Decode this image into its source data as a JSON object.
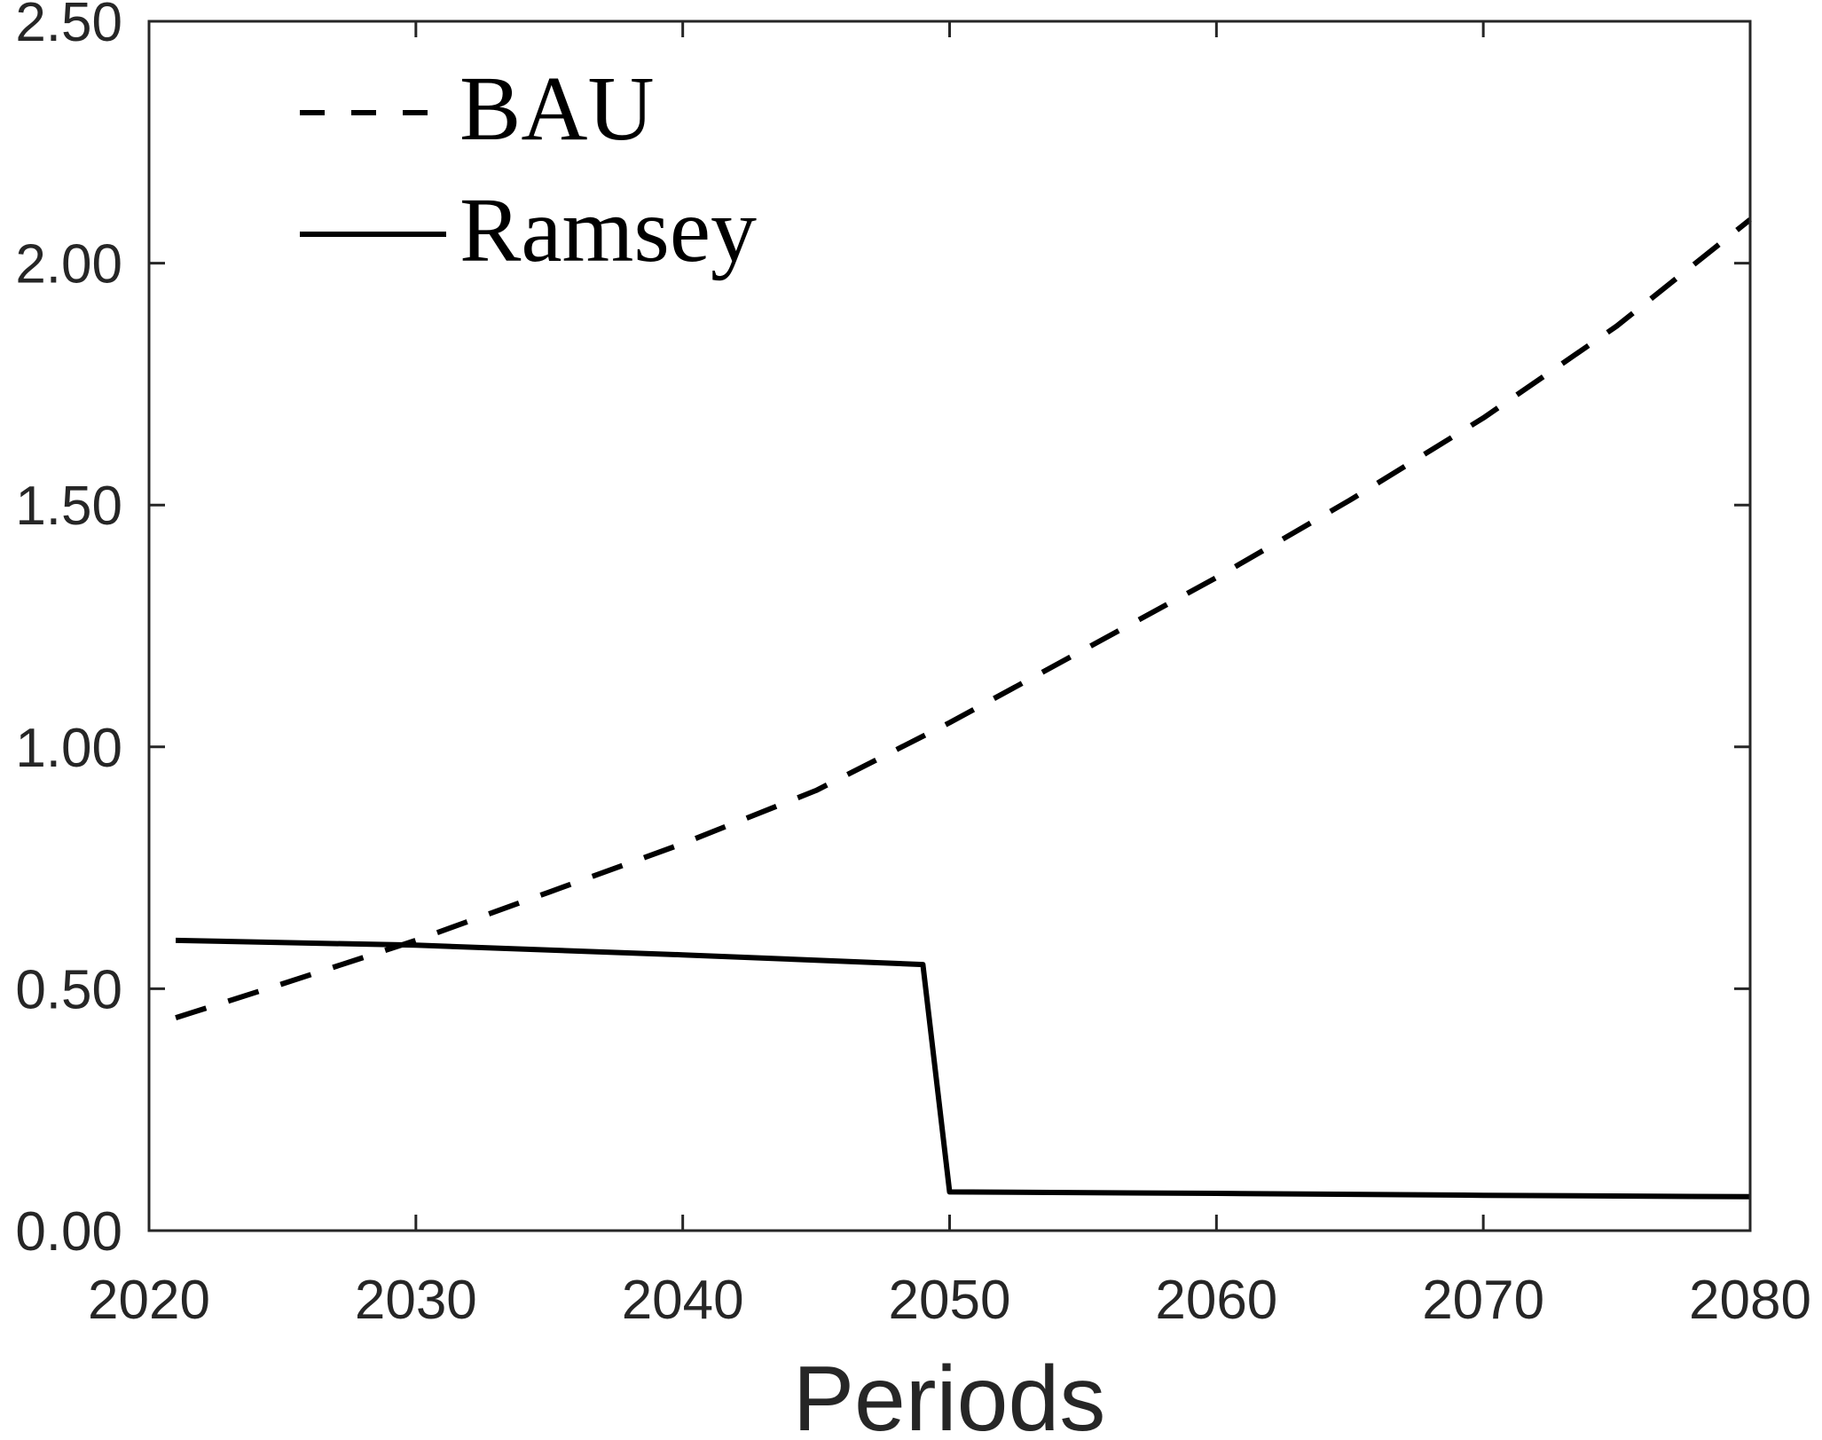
{
  "chart_data": {
    "type": "line",
    "title": "",
    "xlabel": "Periods",
    "ylabel": "",
    "xlim": [
      2020,
      2080
    ],
    "ylim": [
      0,
      2.5
    ],
    "xticks": [
      2020,
      2030,
      2040,
      2050,
      2060,
      2070,
      2080
    ],
    "xtick_labels": [
      "2020",
      "2030",
      "2040",
      "2050",
      "2060",
      "2070",
      "2080"
    ],
    "yticks": [
      0,
      0.5,
      1,
      1.5,
      2,
      2.5
    ],
    "ytick_labels": [
      "0.00",
      "0.50",
      "1.00",
      "1.50",
      "2.00",
      "2.50"
    ],
    "grid": false,
    "legend_position": "top-left",
    "series": [
      {
        "name": "BAU",
        "style": "dashed",
        "color": "#000000",
        "x": [
          2021,
          2025,
          2030,
          2035,
          2040,
          2045,
          2050,
          2055,
          2060,
          2065,
          2070,
          2075,
          2080
        ],
        "y": [
          0.44,
          0.51,
          0.6,
          0.7,
          0.8,
          0.91,
          1.05,
          1.2,
          1.35,
          1.51,
          1.68,
          1.87,
          2.09
        ]
      },
      {
        "name": "Ramsey",
        "style": "solid",
        "color": "#000000",
        "x": [
          2021,
          2030,
          2040,
          2049,
          2050,
          2060,
          2070,
          2080
        ],
        "y": [
          0.6,
          0.59,
          0.57,
          0.55,
          0.08,
          0.077,
          0.073,
          0.07
        ]
      }
    ]
  }
}
